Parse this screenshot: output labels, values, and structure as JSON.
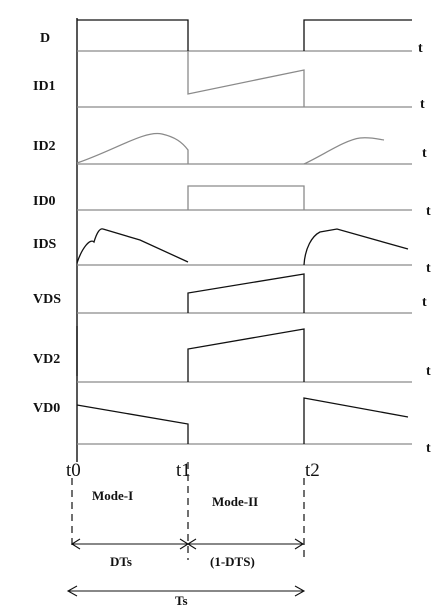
{
  "signals": [
    {
      "name": "D",
      "axis": "t"
    },
    {
      "name": "ID1",
      "axis": "t"
    },
    {
      "name": "ID2",
      "axis": "t"
    },
    {
      "name": "ID0",
      "axis": "t"
    },
    {
      "name": "IDS",
      "axis": "t"
    },
    {
      "name": "VDS",
      "axis": "t"
    },
    {
      "name": "VD2",
      "axis": "t"
    },
    {
      "name": "VD0",
      "axis": "t"
    }
  ],
  "time_marks": [
    "t0",
    "t1",
    "t2"
  ],
  "modes": [
    "Mode-I",
    "Mode-II"
  ],
  "intervals": {
    "first": "DTs",
    "second": "(1-DTS)",
    "period": "Ts"
  }
}
